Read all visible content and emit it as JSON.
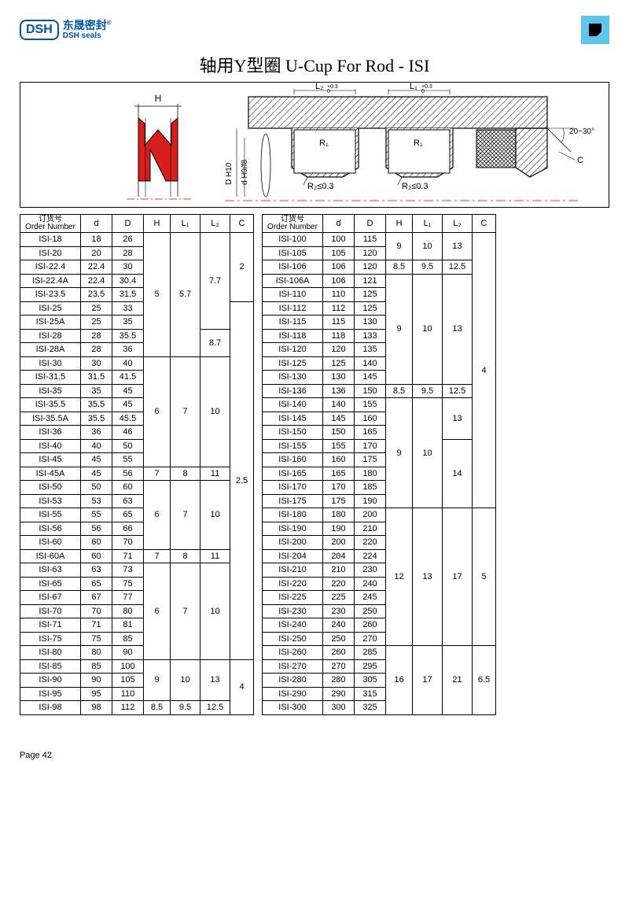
{
  "logo": {
    "abbr": "DSH",
    "cn": "东晟密封",
    "en": "DSH seals",
    "reg": "®"
  },
  "title": "轴用Y型圈 U-Cup For Rod - ISI",
  "diagram": {
    "seal_color": "#d91e1e",
    "hatch_color": "#000",
    "line_color": "#000",
    "labels": {
      "H": "H",
      "L2": "L₂",
      "L1": "L₁",
      "R1": "R₁",
      "R2a": "R₂≤0.3",
      "R2b": "R₂≤0.3",
      "angle": "20~30°",
      "C": "C",
      "DH10": "D H10",
      "dH9": "d H9/f8",
      "tol1": "+0.3\n  0",
      "tol2": "+0.3\n  0"
    }
  },
  "columns": {
    "order_cn": "订货号",
    "order_en": "Order Number",
    "d": "d",
    "D": "D",
    "H": "H",
    "L1": "L₁",
    "L2": "L₂",
    "C": "C"
  },
  "left": [
    {
      "on": "ISI-18",
      "d": "18",
      "D": "26"
    },
    {
      "on": "ISI-20",
      "d": "20",
      "D": "28"
    },
    {
      "on": "ISI-22.4",
      "d": "22.4",
      "D": "30"
    },
    {
      "on": "ISI-22.4A",
      "d": "22.4",
      "D": "30.4"
    },
    {
      "on": "ISI-23.5",
      "d": "23.5",
      "D": "31.5"
    },
    {
      "on": "ISI-25",
      "d": "25",
      "D": "33"
    },
    {
      "on": "ISI-25A",
      "d": "25",
      "D": "35"
    },
    {
      "on": "ISI-28",
      "d": "28",
      "D": "35.5"
    },
    {
      "on": "ISI-28A",
      "d": "28",
      "D": "36"
    },
    {
      "on": "ISI-30",
      "d": "30",
      "D": "40"
    },
    {
      "on": "ISI-31.5",
      "d": "31.5",
      "D": "41.5"
    },
    {
      "on": "ISI-35",
      "d": "35",
      "D": "45"
    },
    {
      "on": "ISI-35.5",
      "d": "35.5",
      "D": "45"
    },
    {
      "on": "ISI-35.5A",
      "d": "35.5",
      "D": "45.5"
    },
    {
      "on": "ISI-36",
      "d": "36",
      "D": "46"
    },
    {
      "on": "ISI-40",
      "d": "40",
      "D": "50"
    },
    {
      "on": "ISI-45",
      "d": "45",
      "D": "55"
    },
    {
      "on": "ISI-45A",
      "d": "45",
      "D": "56"
    },
    {
      "on": "ISI-50",
      "d": "50",
      "D": "60"
    },
    {
      "on": "ISI-53",
      "d": "53",
      "D": "63"
    },
    {
      "on": "ISI-55",
      "d": "55",
      "D": "65"
    },
    {
      "on": "ISI-56",
      "d": "56",
      "D": "66"
    },
    {
      "on": "ISI-60",
      "d": "60",
      "D": "70"
    },
    {
      "on": "ISI-60A",
      "d": "60",
      "D": "71"
    },
    {
      "on": "ISI-63",
      "d": "63",
      "D": "73"
    },
    {
      "on": "ISI-65",
      "d": "65",
      "D": "75"
    },
    {
      "on": "ISI-67",
      "d": "67",
      "D": "77"
    },
    {
      "on": "ISI-70",
      "d": "70",
      "D": "80"
    },
    {
      "on": "ISI-71",
      "d": "71",
      "D": "81"
    },
    {
      "on": "ISI-75",
      "d": "75",
      "D": "85"
    },
    {
      "on": "ISI-80",
      "d": "80",
      "D": "90"
    },
    {
      "on": "ISI-85",
      "d": "85",
      "D": "100"
    },
    {
      "on": "ISI-90",
      "d": "90",
      "D": "105"
    },
    {
      "on": "ISI-95",
      "d": "95",
      "D": "110"
    },
    {
      "on": "ISI-98",
      "d": "98",
      "D": "112"
    }
  ],
  "left_spans": {
    "H": [
      {
        "v": "5",
        "s": 9
      },
      {
        "v": "6",
        "s": 8
      },
      {
        "v": "7",
        "s": 1
      },
      {
        "v": "6",
        "s": 5
      },
      {
        "v": "7",
        "s": 1
      },
      {
        "v": "6",
        "s": 7
      },
      {
        "v": "9",
        "s": 3
      },
      {
        "v": "8.5",
        "s": 1
      }
    ],
    "L1": [
      {
        "v": "5.7",
        "s": 9
      },
      {
        "v": "7",
        "s": 8
      },
      {
        "v": "8",
        "s": 1
      },
      {
        "v": "7",
        "s": 5
      },
      {
        "v": "8",
        "s": 1
      },
      {
        "v": "7",
        "s": 7
      },
      {
        "v": "10",
        "s": 3
      },
      {
        "v": "9.5",
        "s": 1
      }
    ],
    "L2": [
      {
        "v": "7.7",
        "s": 7
      },
      {
        "v": "8.7",
        "s": 2
      },
      {
        "v": "10",
        "s": 8
      },
      {
        "v": "11",
        "s": 1
      },
      {
        "v": "10",
        "s": 5
      },
      {
        "v": "11",
        "s": 1
      },
      {
        "v": "10",
        "s": 7
      },
      {
        "v": "13",
        "s": 3
      },
      {
        "v": "12.5",
        "s": 1
      }
    ],
    "C": [
      {
        "v": "2",
        "s": 5
      },
      {
        "v": "2.5",
        "s": 26
      },
      {
        "v": "4",
        "s": 4
      }
    ]
  },
  "right": [
    {
      "on": "ISI-100",
      "d": "100",
      "D": "115"
    },
    {
      "on": "ISI-105",
      "d": "105",
      "D": "120"
    },
    {
      "on": "ISI-106",
      "d": "106",
      "D": "120"
    },
    {
      "on": "ISI-106A",
      "d": "106",
      "D": "121"
    },
    {
      "on": "ISI-110",
      "d": "110",
      "D": "125"
    },
    {
      "on": "ISI-112",
      "d": "112",
      "D": "125"
    },
    {
      "on": "ISI-115",
      "d": "115",
      "D": "130"
    },
    {
      "on": "ISI-118",
      "d": "118",
      "D": "133"
    },
    {
      "on": "ISI-120",
      "d": "120",
      "D": "135"
    },
    {
      "on": "ISI-125",
      "d": "125",
      "D": "140"
    },
    {
      "on": "ISI-130",
      "d": "130",
      "D": "145"
    },
    {
      "on": "ISI-136",
      "d": "136",
      "D": "150"
    },
    {
      "on": "ISI-140",
      "d": "140",
      "D": "155"
    },
    {
      "on": "ISI-145",
      "d": "145",
      "D": "160"
    },
    {
      "on": "ISI-150",
      "d": "150",
      "D": "165"
    },
    {
      "on": "ISI-155",
      "d": "155",
      "D": "170"
    },
    {
      "on": "ISI-160",
      "d": "160",
      "D": "175"
    },
    {
      "on": "ISI-165",
      "d": "165",
      "D": "180"
    },
    {
      "on": "ISI-170",
      "d": "170",
      "D": "185"
    },
    {
      "on": "ISI-175",
      "d": "175",
      "D": "190"
    },
    {
      "on": "ISI-180",
      "d": "180",
      "D": "200"
    },
    {
      "on": "ISI-190",
      "d": "190",
      "D": "210"
    },
    {
      "on": "ISI-200",
      "d": "200",
      "D": "220"
    },
    {
      "on": "ISI-204",
      "d": "204",
      "D": "224"
    },
    {
      "on": "ISI-210",
      "d": "210",
      "D": "230"
    },
    {
      "on": "ISI-220",
      "d": "220",
      "D": "240"
    },
    {
      "on": "ISI-225",
      "d": "225",
      "D": "245"
    },
    {
      "on": "ISI-230",
      "d": "230",
      "D": "250"
    },
    {
      "on": "ISI-240",
      "d": "240",
      "D": "260"
    },
    {
      "on": "ISI-250",
      "d": "250",
      "D": "270"
    },
    {
      "on": "ISI-260",
      "d": "260",
      "D": "285"
    },
    {
      "on": "ISI-270",
      "d": "270",
      "D": "295"
    },
    {
      "on": "ISI-280",
      "d": "280",
      "D": "305"
    },
    {
      "on": "ISI-290",
      "d": "290",
      "D": "315"
    },
    {
      "on": "ISI-300",
      "d": "300",
      "D": "325"
    }
  ],
  "right_spans": {
    "H": [
      {
        "v": "9",
        "s": 2
      },
      {
        "v": "8.5",
        "s": 1
      },
      {
        "v": "9",
        "s": 8
      },
      {
        "v": "8.5",
        "s": 1
      },
      {
        "v": "9",
        "s": 8
      },
      {
        "v": "12",
        "s": 10
      },
      {
        "v": "16",
        "s": 5
      }
    ],
    "L1": [
      {
        "v": "10",
        "s": 2
      },
      {
        "v": "9.5",
        "s": 1
      },
      {
        "v": "10",
        "s": 8
      },
      {
        "v": "9.5",
        "s": 1
      },
      {
        "v": "10",
        "s": 8
      },
      {
        "v": "13",
        "s": 10
      },
      {
        "v": "17",
        "s": 5
      }
    ],
    "L2": [
      {
        "v": "13",
        "s": 2
      },
      {
        "v": "12.5",
        "s": 1
      },
      {
        "v": "13",
        "s": 8
      },
      {
        "v": "12.5",
        "s": 1
      },
      {
        "v": "13",
        "s": 3
      },
      {
        "v": "14",
        "s": 5
      },
      {
        "v": "17",
        "s": 10
      },
      {
        "v": "21",
        "s": 5
      }
    ],
    "C": [
      {
        "v": "4",
        "s": 20
      },
      {
        "v": "5",
        "s": 10
      },
      {
        "v": "6.5",
        "s": 5
      }
    ]
  },
  "footer": "Page 42"
}
